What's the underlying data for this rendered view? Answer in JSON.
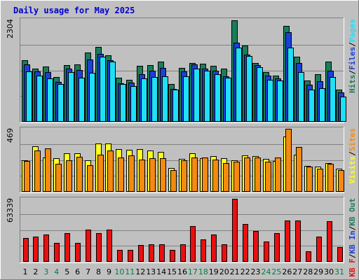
{
  "title": "Daily usage for May 2025",
  "colors": {
    "background": "#c0c0c0",
    "frame_outer": "#ffffff",
    "frame_inner": "#808080",
    "title": "#0000cc",
    "weekday_label": "#000000",
    "weekend_label": "#008040",
    "hits": "#1c7d5a",
    "files": "#1c40d8",
    "pages": "#1ee0f8",
    "visits": "#ffff20",
    "sites": "#f48a10",
    "kbytes": "#e81010",
    "separator": "#000000"
  },
  "chart_data": [
    {
      "type": "bar",
      "panel": "top",
      "y_max_label": "2304",
      "ylim": [
        0,
        2304
      ],
      "x": [
        "1",
        "2",
        "3",
        "4",
        "5",
        "6",
        "7",
        "8",
        "9",
        "10",
        "11",
        "12",
        "13",
        "14",
        "15",
        "16",
        "17",
        "18",
        "19",
        "20",
        "21",
        "22",
        "23",
        "24",
        "25",
        "26",
        "27",
        "28",
        "29",
        "30",
        "31"
      ],
      "weekend": [
        3,
        4,
        10,
        11,
        17,
        18,
        24,
        25,
        31
      ],
      "legend": [
        {
          "text": "Hits",
          "color": "#1c7d5a"
        },
        {
          "text": "/",
          "color": "#000000"
        },
        {
          "text": "Files",
          "color": "#1c40d8"
        },
        {
          "text": "/",
          "color": "#000000"
        },
        {
          "text": "Pages",
          "color": "#1ee0f8"
        }
      ],
      "series": [
        {
          "name": "Hits",
          "color": "#1c7d5a",
          "values": [
            1385,
            1190,
            1240,
            1001,
            1262,
            1287,
            1559,
            1682,
            1489,
            984,
            939,
            1248,
            1275,
            1342,
            850,
            1213,
            1317,
            1305,
            1248,
            1197,
            2274,
            1707,
            1316,
            1107,
            1030,
            2155,
            1457,
            924,
            1062,
            1344,
            717
          ]
        },
        {
          "name": "Files",
          "color": "#1c40d8",
          "values": [
            1278,
            1123,
            1110,
            887,
            1193,
            1153,
            1392,
            1526,
            1384,
            864,
            870,
            1065,
            1144,
            1202,
            741,
            1130,
            1289,
            1187,
            1146,
            1023,
            1777,
            1504,
            1270,
            1029,
            968,
            2008,
            1314,
            830,
            913,
            1148,
            652
          ]
        },
        {
          "name": "Pages",
          "color": "#1ee0f8",
          "values": [
            1131,
            1037,
            979,
            839,
            1113,
            989,
            1096,
            1457,
            1351,
            848,
            806,
            969,
            1010,
            1023,
            718,
            1011,
            1197,
            1141,
            1067,
            988,
            1654,
            1479,
            1225,
            936,
            923,
            1667,
            1111,
            720,
            749,
            1001,
            561
          ]
        }
      ]
    },
    {
      "type": "bar",
      "panel": "middle",
      "y_max_label": "469",
      "ylim": [
        0,
        469
      ],
      "legend": [
        {
          "text": "Visits",
          "color": "#ffff20"
        },
        {
          "text": "/",
          "color": "#000000"
        },
        {
          "text": "Sites",
          "color": "#f48a10"
        }
      ],
      "series": [
        {
          "name": "Visits",
          "color": "#ffff20",
          "values": [
            232,
            336,
            254,
            247,
            284,
            284,
            231,
            354,
            355,
            312,
            307,
            312,
            302,
            292,
            173,
            243,
            284,
            247,
            264,
            247,
            231,
            267,
            265,
            241,
            229,
            407,
            275,
            192,
            188,
            213,
            169
          ]
        },
        {
          "name": "Sites",
          "color": "#f48a10",
          "values": [
            226,
            304,
            317,
            208,
            231,
            260,
            198,
            274,
            305,
            251,
            268,
            239,
            245,
            247,
            162,
            234,
            251,
            250,
            239,
            213,
            222,
            254,
            254,
            220,
            254,
            466,
            332,
            186,
            172,
            208,
            161
          ]
        }
      ]
    },
    {
      "type": "bar",
      "panel": "bottom",
      "y_max_label": "63339",
      "ylim": [
        0,
        63339
      ],
      "legend": [
        {
          "text": "KB F",
          "color": "#e81010"
        },
        {
          "text": "/",
          "color": "#000000"
        },
        {
          "text": "KB In",
          "color": "#1c40d8"
        },
        {
          "text": "/",
          "color": "#000000"
        },
        {
          "text": "KB Out",
          "color": "#1c7d5a"
        }
      ],
      "series": [
        {
          "name": "KB F",
          "color": "#e81010",
          "values": [
            23430,
            25380,
            27330,
            19040,
            28300,
            18550,
            31760,
            28300,
            31760,
            11720,
            11720,
            16590,
            17560,
            17560,
            11720,
            17560,
            35190,
            22450,
            27330,
            17560,
            62990,
            37630,
            30360,
            20520,
            28300,
            41070,
            41070,
            10750,
            24860,
            40580,
            14660
          ]
        }
      ]
    }
  ]
}
